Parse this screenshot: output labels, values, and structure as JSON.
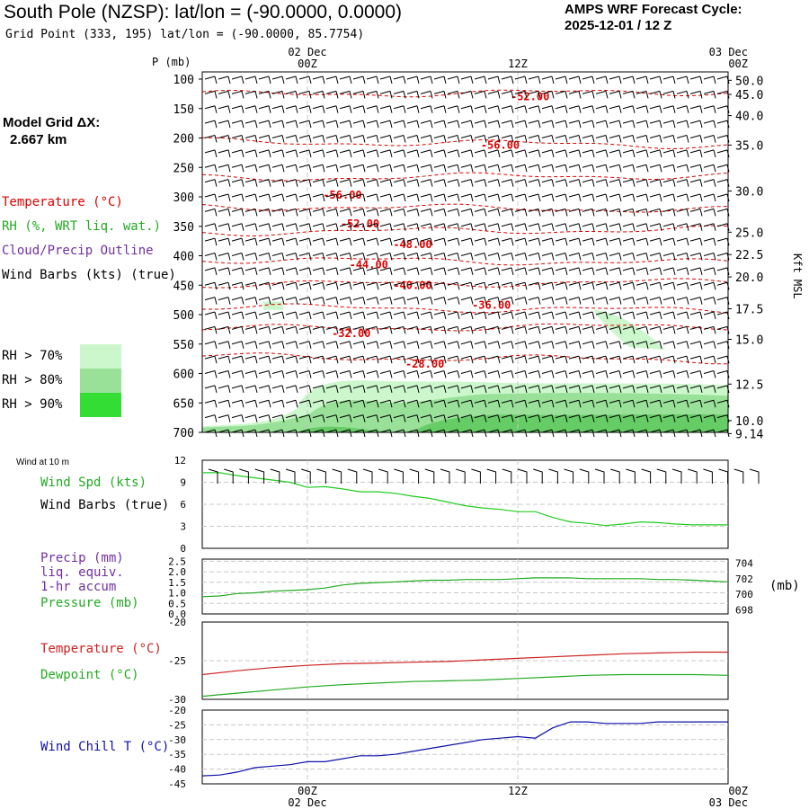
{
  "header": {
    "title": "South Pole (NZSP):  lat/lon = (-90.0000, 0.0000)",
    "subtitle": "Grid Point (333, 195) lat/lon = (-90.0000, 85.7754)",
    "cycle_line1": "AMPS WRF Forecast Cycle:",
    "cycle_line2": "2025-12-01 / 12  Z"
  },
  "model_grid": {
    "line1": "Model Grid ΔX:",
    "line2": "2.667 km"
  },
  "time_axis": {
    "top_labels": [
      {
        "hour": 6,
        "date": "02 Dec",
        "time": "00Z"
      },
      {
        "hour": 18,
        "date": "",
        "time": "12Z"
      },
      {
        "hour": 30,
        "date": "03 Dec",
        "time": "00Z"
      }
    ],
    "start_hour": 0,
    "end_hour": 30
  },
  "legend": {
    "temperature": "Temperature (°C)",
    "rh": "RH (%, WRT liq. wat.)",
    "cloud": "Cloud/Precip Outline",
    "wind_barbs": "Wind Barbs (kts) (true)",
    "rh70": "RH > 70%",
    "rh80": "RH > 80%",
    "rh90": "RH > 90%"
  },
  "colors": {
    "temperature": "#dd0000",
    "rh": "#22aa22",
    "cloud": "#7030a0",
    "rh70": "#ccf7cc",
    "rh80": "#99e099",
    "rh90": "#33dd33",
    "windspeed": "#22cc22",
    "windchill": "#1010aa"
  },
  "chart_data": [
    {
      "type": "heatmap",
      "name": "vertical cross-section",
      "yaxis_label": "P (mb)",
      "p_ticks": [
        "100",
        "150",
        "200",
        "250",
        "300",
        "350",
        "400",
        "450",
        "500",
        "550",
        "600",
        "650",
        "700"
      ],
      "right_axis_label": "Kft MSL",
      "height_ticks": [
        {
          "label": "50.0",
          "p": 102
        },
        {
          "label": "45.0",
          "p": 126
        },
        {
          "label": "40.0",
          "p": 162
        },
        {
          "label": "35.0",
          "p": 212
        },
        {
          "label": "30.0",
          "p": 290
        },
        {
          "label": "25.0",
          "p": 360
        },
        {
          "label": "22.5",
          "p": 398
        },
        {
          "label": "20.0",
          "p": 436
        },
        {
          "label": "17.5",
          "p": 490
        },
        {
          "label": "15.0",
          "p": 542
        },
        {
          "label": "12.5",
          "p": 618
        },
        {
          "label": "10.0",
          "p": 680
        },
        {
          "label": "9.14",
          "p": 702
        }
      ],
      "isotherm_labels": [
        {
          "text": "-52.00",
          "hour": 18.7,
          "p": 130
        },
        {
          "text": "-56.00",
          "hour": 17.0,
          "p": 212
        },
        {
          "text": "-56.00",
          "hour": 8.0,
          "p": 297
        },
        {
          "text": "-52.00",
          "hour": 9.0,
          "p": 346
        },
        {
          "text": "-48.00",
          "hour": 12.0,
          "p": 381
        },
        {
          "text": "-44.00",
          "hour": 9.5,
          "p": 415
        },
        {
          "text": "-40.00",
          "hour": 12.0,
          "p": 450
        },
        {
          "text": "-36.00",
          "hour": 16.5,
          "p": 484
        },
        {
          "text": "-32.00",
          "hour": 8.5,
          "p": 532
        },
        {
          "text": "-28.00",
          "hour": 12.7,
          "p": 584
        }
      ],
      "isotherm_p_levels": [
        126,
        206,
        268,
        316,
        360,
        406,
        449,
        487,
        524,
        571
      ]
    },
    {
      "type": "line",
      "name": "wind speed",
      "title": "Wind at 10 m",
      "series_label": "Wind Spd (kts)",
      "barb_label": "Wind Barbs (true)",
      "yticks": [
        "12",
        "9",
        "6",
        "3",
        "0"
      ],
      "ylim": [
        0,
        12
      ],
      "x": [
        0,
        1,
        2,
        3,
        4,
        5,
        6,
        7,
        8,
        9,
        10,
        11,
        12,
        13,
        14,
        15,
        16,
        17,
        18,
        19,
        20,
        21,
        22,
        23,
        24,
        25,
        26,
        27,
        28,
        29,
        30
      ],
      "values": [
        10.3,
        10.3,
        9.9,
        9.6,
        9.3,
        9.0,
        8.3,
        8.4,
        8.1,
        7.7,
        7.7,
        7.5,
        7.1,
        6.8,
        6.3,
        5.8,
        5.5,
        5.3,
        5.0,
        5.0,
        4.2,
        3.6,
        3.4,
        3.1,
        3.3,
        3.6,
        3.5,
        3.3,
        3.2,
        3.2,
        3.2
      ]
    },
    {
      "type": "line",
      "name": "precip and pressure",
      "precip_label": "Precip (mm)",
      "precip_label2": "liq. equiv.",
      "precip_label3": "1-hr accum",
      "pressure_label": "Pressure (mb)",
      "right_unit": "(mb)",
      "yticks_left": [
        "2.5",
        "2.0",
        "1.5",
        "1.0",
        "0.5",
        "0.0"
      ],
      "yticks_right": [
        "704",
        "702",
        "700",
        "698"
      ],
      "ylim_right": [
        697.5,
        704.5
      ],
      "x": [
        0,
        1,
        2,
        3,
        4,
        5,
        6,
        7,
        8,
        9,
        10,
        11,
        12,
        13,
        14,
        15,
        16,
        17,
        18,
        19,
        20,
        21,
        22,
        23,
        24,
        25,
        26,
        27,
        28,
        29,
        30
      ],
      "pressure": [
        699.7,
        699.8,
        700.1,
        700.2,
        700.4,
        700.5,
        700.6,
        700.8,
        701.2,
        701.4,
        701.5,
        701.6,
        701.7,
        701.8,
        701.8,
        701.9,
        701.9,
        701.9,
        702.0,
        702.1,
        702.1,
        702.1,
        702.0,
        702.0,
        702.0,
        702.0,
        701.9,
        701.9,
        701.8,
        701.7,
        701.6
      ]
    },
    {
      "type": "line",
      "name": "temperature and dewpoint",
      "temp_label": "Temperature (°C)",
      "dew_label": "Dewpoint (°C)",
      "yticks": [
        "-20",
        "-25",
        "-30"
      ],
      "ylim": [
        -30,
        -20
      ],
      "x": [
        0,
        2,
        4,
        6,
        8,
        10,
        12,
        14,
        16,
        18,
        20,
        22,
        24,
        26,
        28,
        30
      ],
      "temperature": [
        -26.8,
        -26.3,
        -25.9,
        -25.6,
        -25.4,
        -25.3,
        -25.2,
        -25.1,
        -24.9,
        -24.7,
        -24.5,
        -24.3,
        -24.1,
        -24.0,
        -23.9,
        -23.9
      ],
      "dewpoint": [
        -29.6,
        -29.2,
        -28.8,
        -28.4,
        -28.1,
        -27.9,
        -27.7,
        -27.6,
        -27.5,
        -27.3,
        -27.1,
        -26.9,
        -26.8,
        -26.8,
        -26.8,
        -26.9
      ]
    },
    {
      "type": "line",
      "name": "wind chill",
      "series_label": "Wind Chill T (°C)",
      "yticks": [
        "-20",
        "-25",
        "-30",
        "-35",
        "-40",
        "-45"
      ],
      "ylim": [
        -45,
        -20
      ],
      "x": [
        0,
        1,
        2,
        3,
        4,
        5,
        6,
        7,
        8,
        9,
        10,
        11,
        12,
        13,
        14,
        15,
        16,
        17,
        18,
        19,
        20,
        21,
        22,
        23,
        24,
        25,
        26,
        27,
        28,
        29,
        30
      ],
      "values": [
        -42.3,
        -42.0,
        -41.0,
        -39.5,
        -39.0,
        -38.5,
        -37.5,
        -37.5,
        -36.5,
        -35.5,
        -35.5,
        -35.0,
        -34.0,
        -33.0,
        -32.0,
        -31.0,
        -30.0,
        -29.5,
        -29.0,
        -29.5,
        -26.0,
        -24.0,
        -24.0,
        -24.5,
        -24.5,
        -24.5,
        -24.0,
        -24.0,
        -24.0,
        -24.0,
        -24.0
      ]
    }
  ]
}
